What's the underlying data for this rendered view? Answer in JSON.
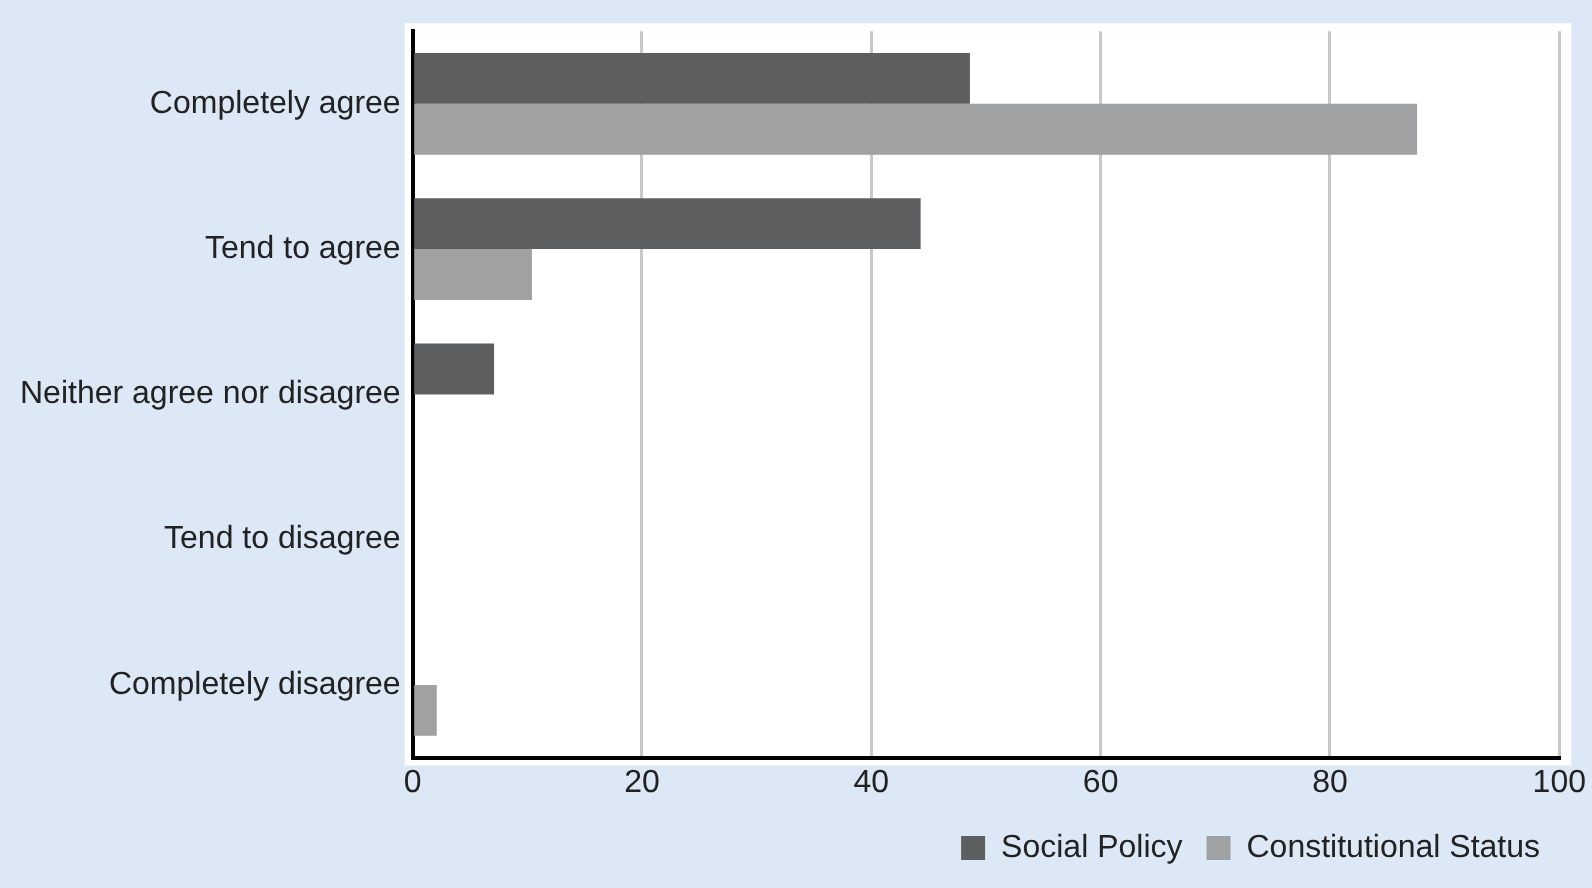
{
  "chart_data": {
    "type": "bar",
    "orientation": "horizontal",
    "categories": [
      "Completely agree",
      "Tend to agree",
      "Neither agree nor disagree",
      "Tend to disagree",
      "Completely disagree"
    ],
    "series": [
      {
        "name": "Social Policy",
        "color": "#5d5e60",
        "values": [
          48.6,
          44.3,
          7.1,
          0,
          0
        ]
      },
      {
        "name": "Constitutional Status",
        "color": "#a0a1a3",
        "values": [
          87.6,
          10.4,
          0,
          0,
          2.1
        ]
      }
    ],
    "xlim": [
      0,
      100
    ],
    "xticks": [
      0,
      20,
      40,
      60,
      80,
      100
    ],
    "grid": "x",
    "legend": "bottom"
  }
}
